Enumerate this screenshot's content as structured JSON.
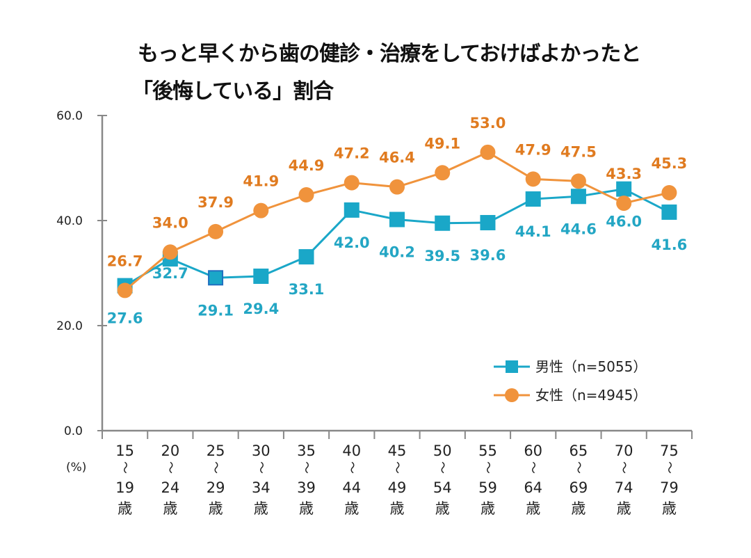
{
  "chart_data": {
    "type": "line",
    "title_line1": "もっと早くから歯の健診・治療をしておけばよかったと",
    "title_line2": "「後悔している」割合",
    "ylabel": "(%)",
    "ylim": [
      0,
      60
    ],
    "yticks": [
      "0.0",
      "20.0",
      "40.0",
      "60.0"
    ],
    "categories": [
      [
        "15",
        "〜",
        "19",
        "歳"
      ],
      [
        "20",
        "〜",
        "24",
        "歳"
      ],
      [
        "25",
        "〜",
        "29",
        "歳"
      ],
      [
        "30",
        "〜",
        "34",
        "歳"
      ],
      [
        "35",
        "〜",
        "39",
        "歳"
      ],
      [
        "40",
        "〜",
        "44",
        "歳"
      ],
      [
        "45",
        "〜",
        "49",
        "歳"
      ],
      [
        "50",
        "〜",
        "54",
        "歳"
      ],
      [
        "55",
        "〜",
        "59",
        "歳"
      ],
      [
        "60",
        "〜",
        "64",
        "歳"
      ],
      [
        "65",
        "〜",
        "69",
        "歳"
      ],
      [
        "70",
        "〜",
        "74",
        "歳"
      ],
      [
        "75",
        "〜",
        "79",
        "歳"
      ]
    ],
    "series": [
      {
        "name": "男性（n=5055）",
        "marker": "square",
        "color": "#1aa7c8",
        "label_color": "#23a6c4",
        "values": [
          27.6,
          32.7,
          29.1,
          29.4,
          33.1,
          42.0,
          40.2,
          39.5,
          39.6,
          44.1,
          44.6,
          46.0,
          41.6
        ]
      },
      {
        "name": "女性（n=4945）",
        "marker": "circle",
        "color": "#f0933c",
        "label_color": "#e07b20",
        "values": [
          26.7,
          34.0,
          37.9,
          41.9,
          44.9,
          47.2,
          46.4,
          49.1,
          53.0,
          47.9,
          47.5,
          43.3,
          45.3
        ]
      }
    ],
    "grid": false,
    "legend": "bottom-right"
  }
}
